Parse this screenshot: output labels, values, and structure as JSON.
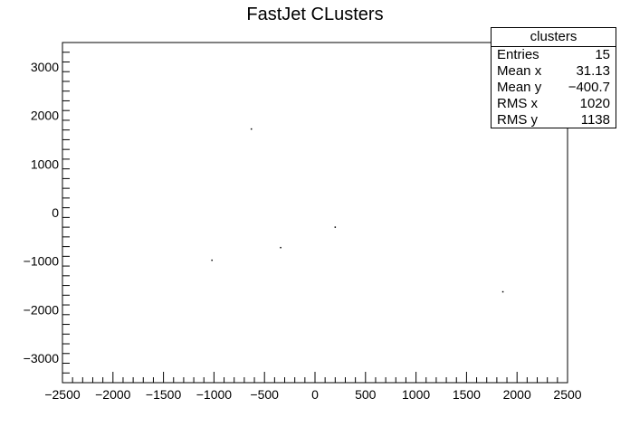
{
  "chart_data": {
    "type": "scatter",
    "title": "FastJet CLusters",
    "xlabel": "",
    "ylabel": "",
    "xlim": [
      -2500,
      2500
    ],
    "ylim": [
      -3500,
      3500
    ],
    "x_ticks": [
      -2500,
      -2000,
      -1500,
      -1000,
      -500,
      0,
      500,
      1000,
      1500,
      2000,
      2500
    ],
    "y_ticks": [
      -3000,
      -2000,
      -1000,
      0,
      1000,
      2000,
      3000
    ],
    "x_tick_labels": [
      "−2500",
      "−2000",
      "−1500",
      "−1000",
      "−500",
      "0",
      "500",
      "1000",
      "1500",
      "2000",
      "2500"
    ],
    "y_tick_labels": [
      "−3000",
      "−2000",
      "−1000",
      "0",
      "1000",
      "2000",
      "3000"
    ],
    "grid": false,
    "points": [
      {
        "x": -630,
        "y": 1720
      },
      {
        "x": -340,
        "y": -720
      },
      {
        "x": -1020,
        "y": -980
      },
      {
        "x": 200,
        "y": -300
      },
      {
        "x": 1860,
        "y": -1630
      }
    ],
    "marker_color": "#000000"
  },
  "stats": {
    "title": "clusters",
    "rows": [
      {
        "label": "Entries",
        "value": "15"
      },
      {
        "label": "Mean x",
        "value": "31.13"
      },
      {
        "label": "Mean y",
        "value": "−400.7"
      },
      {
        "label": "RMS x",
        "value": "1020"
      },
      {
        "label": "RMS y",
        "value": "1138"
      }
    ]
  }
}
